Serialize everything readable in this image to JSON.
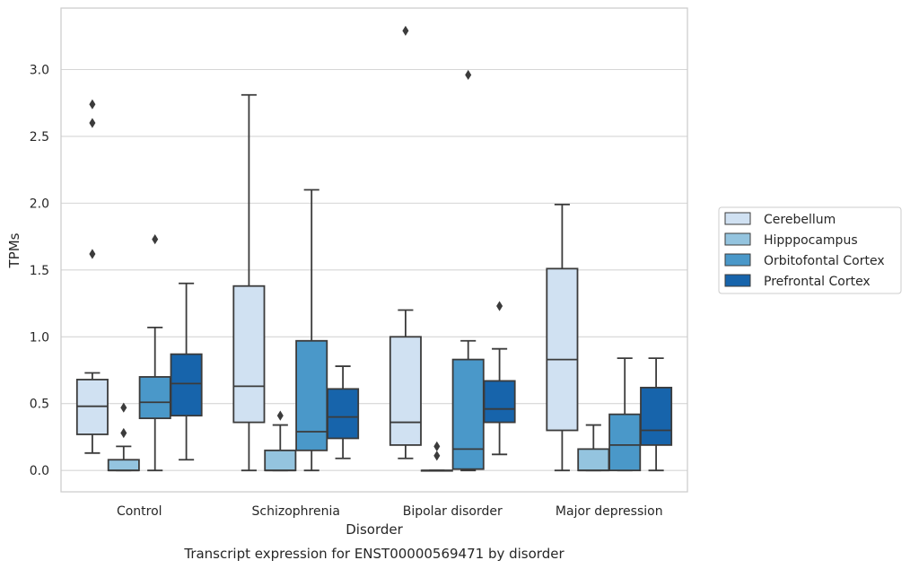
{
  "chart_data": {
    "type": "boxplot",
    "caption": "Transcript expression for ENST00000569471 by disorder",
    "xlabel": "Disorder",
    "ylabel": "TPMs",
    "ylim": [
      -0.16,
      3.46
    ],
    "yticks": [
      0.0,
      0.5,
      1.0,
      1.5,
      2.0,
      2.5,
      3.0
    ],
    "ytick_labels": [
      "0.0",
      "0.5",
      "1.0",
      "1.5",
      "2.0",
      "2.5",
      "3.0"
    ],
    "categories": [
      "Control",
      "Schizophrenia",
      "Bipolar disorder",
      "Major depression"
    ],
    "grid": "horizontal",
    "legend_position": "right",
    "series": [
      {
        "name": "Cerebellum",
        "color": "#d0e1f2",
        "boxes": [
          {
            "low": 0.13,
            "q1": 0.27,
            "median": 0.48,
            "q3": 0.68,
            "high": 0.73,
            "outliers": [
              1.62,
              2.6,
              2.74
            ]
          },
          {
            "low": 0.0,
            "q1": 0.36,
            "median": 0.63,
            "q3": 1.38,
            "high": 2.81,
            "outliers": []
          },
          {
            "low": 0.09,
            "q1": 0.19,
            "median": 0.36,
            "q3": 1.0,
            "high": 1.2,
            "outliers": [
              3.29
            ]
          },
          {
            "low": 0.0,
            "q1": 0.3,
            "median": 0.83,
            "q3": 1.51,
            "high": 1.99,
            "outliers": []
          }
        ]
      },
      {
        "name": "Hipppocampus",
        "color": "#94c4df",
        "boxes": [
          {
            "low": 0.0,
            "q1": 0.0,
            "median": 0.0,
            "q3": 0.08,
            "high": 0.18,
            "outliers": [
              0.28,
              0.47
            ]
          },
          {
            "low": 0.0,
            "q1": 0.0,
            "median": 0.0,
            "q3": 0.15,
            "high": 0.34,
            "outliers": [
              0.41
            ]
          },
          {
            "low": 0.0,
            "q1": 0.0,
            "median": 0.0,
            "q3": 0.0,
            "high": 0.0,
            "outliers": [
              0.11,
              0.18
            ]
          },
          {
            "low": 0.0,
            "q1": 0.0,
            "median": 0.0,
            "q3": 0.16,
            "high": 0.34,
            "outliers": []
          }
        ]
      },
      {
        "name": "Orbitofontal Cortex",
        "color": "#4a98c9",
        "boxes": [
          {
            "low": 0.0,
            "q1": 0.39,
            "median": 0.51,
            "q3": 0.7,
            "high": 1.07,
            "outliers": [
              1.73
            ]
          },
          {
            "low": 0.0,
            "q1": 0.15,
            "median": 0.29,
            "q3": 0.97,
            "high": 2.1,
            "outliers": []
          },
          {
            "low": 0.0,
            "q1": 0.01,
            "median": 0.16,
            "q3": 0.83,
            "high": 0.97,
            "outliers": [
              2.96
            ]
          },
          {
            "low": 0.0,
            "q1": 0.0,
            "median": 0.19,
            "q3": 0.42,
            "high": 0.84,
            "outliers": []
          }
        ]
      },
      {
        "name": "Prefrontal Cortex",
        "color": "#1764ab",
        "boxes": [
          {
            "low": 0.08,
            "q1": 0.41,
            "median": 0.65,
            "q3": 0.87,
            "high": 1.4,
            "outliers": []
          },
          {
            "low": 0.09,
            "q1": 0.24,
            "median": 0.4,
            "q3": 0.61,
            "high": 0.78,
            "outliers": []
          },
          {
            "low": 0.12,
            "q1": 0.36,
            "median": 0.46,
            "q3": 0.67,
            "high": 0.91,
            "outliers": [
              1.23
            ]
          },
          {
            "low": 0.0,
            "q1": 0.19,
            "median": 0.3,
            "q3": 0.62,
            "high": 0.84,
            "outliers": []
          }
        ]
      }
    ]
  }
}
